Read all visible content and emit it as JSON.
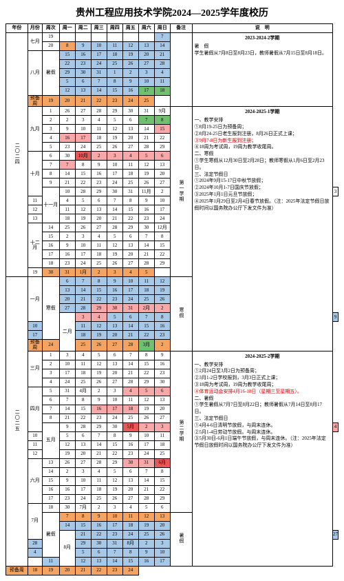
{
  "title": "贵州工程应用技术学院2024—2025学年度校历",
  "headers": {
    "year": "年份",
    "month": "月份",
    "week": "周次",
    "days": [
      "周一",
      "周二",
      "周三",
      "周四",
      "周五",
      "周六",
      "周日"
    ],
    "note": "备注",
    "explain": "说　明"
  },
  "colors": {
    "orange": "#f4a460",
    "blue": "#a8c8e8",
    "green": "#70c070",
    "pink": "#f8a8a8",
    "red": "#e85858",
    "gray": "#fff"
  },
  "years": {
    "y2024": "二〇二四",
    "y2025": "二〇二五"
  },
  "months": {
    "m7": "七月",
    "m8": "八月",
    "m9": "九月",
    "m10": "十月",
    "m11": "十一月",
    "m12": "十二月",
    "m1": "一月",
    "m2": "二月",
    "m3": "三月",
    "m4": "四月",
    "m5": "五月",
    "m6": "六月",
    "m7b": "7月",
    "m8b": "8月"
  },
  "notes": {
    "sem1": "第一学期",
    "sem2": "第二学期",
    "winter": "寒假",
    "summer": "暑假"
  },
  "labels": {
    "summer": "暑假",
    "prep": "预备周",
    "winter": "寒假"
  },
  "rows": [
    {
      "wk": "19",
      "d": [
        "",
        "",
        "",
        "",
        "",
        "",
        "7"
      ],
      "c": [
        "",
        "",
        "",
        "",
        "",
        "",
        "blue"
      ]
    },
    {
      "wk": "20",
      "d": [
        "8",
        "9",
        "10",
        "11",
        "12",
        "13",
        "14"
      ],
      "c": [
        "orange",
        "blue",
        "blue",
        "blue",
        "blue",
        "blue",
        "blue"
      ]
    },
    {
      "wk": "",
      "d": [
        "15",
        "16",
        "17",
        "18",
        "19",
        "20",
        "21"
      ],
      "c": [
        "blue",
        "blue",
        "blue",
        "blue",
        "blue",
        "blue",
        "blue"
      ]
    },
    {
      "wk": "",
      "d": [
        "22",
        "23",
        "24",
        "25",
        "26",
        "27",
        "28"
      ],
      "c": [
        "blue",
        "blue",
        "blue",
        "blue",
        "blue",
        "blue",
        "blue"
      ]
    },
    {
      "wk": "",
      "d": [
        "29",
        "30",
        "31",
        "1",
        "2",
        "3",
        "4"
      ],
      "c": [
        "blue",
        "blue",
        "blue",
        "blue",
        "blue",
        "blue",
        "blue"
      ]
    },
    {
      "wk": "",
      "d": [
        "5",
        "6",
        "7",
        "8",
        "9",
        "10",
        "11"
      ],
      "c": [
        "blue",
        "blue",
        "blue",
        "blue",
        "blue",
        "blue",
        "blue"
      ]
    },
    {
      "wk": "",
      "d": [
        "12",
        "13",
        "14",
        "15",
        "16",
        "17",
        "18"
      ],
      "c": [
        "blue",
        "blue",
        "blue",
        "blue",
        "blue",
        "green",
        "green"
      ]
    },
    {
      "wk": "预备周",
      "d": [
        "19",
        "20",
        "21",
        "22",
        "23",
        "24",
        "25"
      ],
      "c": [
        "orange",
        "orange",
        "orange",
        "orange",
        "orange",
        "orange",
        "orange"
      ]
    },
    {
      "wk": "1",
      "d": [
        "26",
        "27",
        "28",
        "29",
        "30",
        "31",
        "9月"
      ],
      "c": [
        "",
        "",
        "",
        "",
        "",
        "",
        "gray"
      ]
    },
    {
      "wk": "2",
      "d": [
        "2",
        "3",
        "4",
        "5",
        "6",
        "7",
        "8"
      ],
      "c": [
        "",
        "",
        "",
        "",
        "",
        "green",
        "green"
      ]
    },
    {
      "wk": "3",
      "d": [
        "9",
        "10",
        "11",
        "12",
        "13",
        "14",
        "15"
      ],
      "c": [
        "",
        "",
        "",
        "",
        "",
        "",
        "pink"
      ]
    },
    {
      "wk": "4",
      "d": [
        "16",
        "17",
        "18",
        "19",
        "20",
        "21",
        "22"
      ],
      "c": [
        "pink",
        "pink",
        "",
        "",
        "",
        "",
        ""
      ]
    },
    {
      "wk": "5",
      "d": [
        "23",
        "24",
        "25",
        "26",
        "27",
        "28",
        "29"
      ],
      "c": [
        "",
        "",
        "",
        "",
        "",
        "",
        ""
      ]
    },
    {
      "wk": "6",
      "d": [
        "30",
        "10月",
        "2",
        "3",
        "4",
        "5",
        "6"
      ],
      "c": [
        "",
        "red",
        "pink",
        "pink",
        "pink",
        "pink",
        "pink"
      ]
    },
    {
      "wk": "7",
      "d": [
        "7",
        "8",
        "9",
        "10",
        "11",
        "12",
        "13"
      ],
      "c": [
        "pink",
        "",
        "",
        "",
        "",
        "",
        ""
      ]
    },
    {
      "wk": "8",
      "d": [
        "14",
        "15",
        "16",
        "17",
        "18",
        "19",
        "20"
      ],
      "c": [
        "",
        "",
        "",
        "",
        "",
        "",
        ""
      ]
    },
    {
      "wk": "9",
      "d": [
        "21",
        "22",
        "23",
        "24",
        "25",
        "26",
        "27"
      ],
      "c": [
        "",
        "",
        "",
        "",
        "",
        "",
        ""
      ]
    },
    {
      "wk": "10",
      "d": [
        "28",
        "29",
        "30",
        "31",
        "11月",
        "2",
        "3"
      ],
      "c": [
        "",
        "",
        "",
        "",
        "gray",
        "",
        ""
      ]
    },
    {
      "wk": "11",
      "d": [
        "4",
        "5",
        "6",
        "7",
        "8",
        "9",
        "10"
      ],
      "c": [
        "",
        "",
        "",
        "",
        "",
        "",
        ""
      ]
    },
    {
      "wk": "12",
      "d": [
        "11",
        "12",
        "13",
        "14",
        "15",
        "16",
        "17"
      ],
      "c": [
        "",
        "",
        "",
        "",
        "",
        "",
        ""
      ]
    },
    {
      "wk": "13",
      "d": [
        "18",
        "19",
        "20",
        "21",
        "22",
        "23",
        "24"
      ],
      "c": [
        "",
        "",
        "",
        "",
        "",
        "",
        ""
      ]
    },
    {
      "wk": "14",
      "d": [
        "25",
        "26",
        "27",
        "28",
        "29",
        "30",
        "12月"
      ],
      "c": [
        "",
        "",
        "",
        "",
        "",
        "",
        "gray"
      ]
    },
    {
      "wk": "15",
      "d": [
        "2",
        "3",
        "4",
        "5",
        "6",
        "7",
        "8"
      ],
      "c": [
        "",
        "",
        "",
        "",
        "",
        "",
        ""
      ]
    },
    {
      "wk": "16",
      "d": [
        "9",
        "10",
        "11",
        "12",
        "13",
        "14",
        "15"
      ],
      "c": [
        "",
        "",
        "",
        "",
        "",
        "",
        ""
      ]
    },
    {
      "wk": "17",
      "d": [
        "16",
        "17",
        "18",
        "19",
        "20",
        "21",
        "22"
      ],
      "c": [
        "",
        "",
        "",
        "",
        "",
        "",
        ""
      ]
    },
    {
      "wk": "18",
      "d": [
        "23",
        "24",
        "25",
        "26",
        "27",
        "28",
        "29"
      ],
      "c": [
        "",
        "",
        "",
        "",
        "",
        "",
        ""
      ]
    },
    {
      "wk": "19",
      "d": [
        "30",
        "31",
        "1月",
        "2",
        "3",
        "4",
        "5"
      ],
      "c": [
        "orange",
        "orange",
        "orange",
        "orange",
        "orange",
        "orange",
        "orange"
      ]
    },
    {
      "wk": "",
      "d": [
        "6",
        "7",
        "8",
        "9",
        "10",
        "11",
        "12"
      ],
      "c": [
        "blue",
        "blue",
        "blue",
        "blue",
        "blue",
        "blue",
        "blue"
      ]
    },
    {
      "wk": "",
      "d": [
        "13",
        "14",
        "15",
        "16",
        "17",
        "18",
        "19"
      ],
      "c": [
        "blue",
        "blue",
        "blue",
        "blue",
        "blue",
        "blue",
        "blue"
      ]
    },
    {
      "wk": "",
      "d": [
        "20",
        "21",
        "22",
        "23",
        "24",
        "25",
        "26"
      ],
      "c": [
        "blue",
        "blue",
        "blue",
        "blue",
        "blue",
        "blue",
        "blue"
      ]
    },
    {
      "wk": "",
      "d": [
        "27",
        "28",
        "29",
        "30",
        "31",
        "2月",
        "2"
      ],
      "c": [
        "blue",
        "blue",
        "pink",
        "pink",
        "pink",
        "pink",
        "pink"
      ]
    },
    {
      "wk": "",
      "d": [
        "3",
        "4",
        "5",
        "6",
        "7",
        "8",
        "9"
      ],
      "c": [
        "pink",
        "pink",
        "blue",
        "blue",
        "blue",
        "blue",
        "blue"
      ]
    },
    {
      "wk": "",
      "d": [
        "10",
        "11",
        "12",
        "13",
        "14",
        "15",
        "16"
      ],
      "c": [
        "blue",
        "blue",
        "blue",
        "blue",
        "blue",
        "blue",
        "blue"
      ]
    },
    {
      "wk": "",
      "d": [
        "17",
        "18",
        "19",
        "20",
        "21",
        "22",
        "23"
      ],
      "c": [
        "blue",
        "blue",
        "blue",
        "blue",
        "blue",
        "blue",
        "blue"
      ]
    },
    {
      "wk": "预备周",
      "d": [
        "24",
        "25",
        "26",
        "27",
        "28",
        "3月",
        "2"
      ],
      "c": [
        "orange",
        "orange",
        "orange",
        "orange",
        "orange",
        "green",
        "orange"
      ]
    },
    {
      "wk": "1",
      "d": [
        "3",
        "4",
        "5",
        "6",
        "7",
        "8",
        "9"
      ],
      "c": [
        "",
        "",
        "",
        "",
        "",
        "",
        ""
      ]
    },
    {
      "wk": "2",
      "d": [
        "10",
        "11",
        "12",
        "13",
        "14",
        "15",
        "16"
      ],
      "c": [
        "",
        "",
        "",
        "",
        "",
        "",
        ""
      ]
    },
    {
      "wk": "3",
      "d": [
        "17",
        "18",
        "19",
        "20",
        "21",
        "22",
        "23"
      ],
      "c": [
        "",
        "",
        "",
        "",
        "",
        "",
        ""
      ]
    },
    {
      "wk": "4",
      "d": [
        "24",
        "25",
        "26",
        "27",
        "28",
        "29",
        "30"
      ],
      "c": [
        "",
        "",
        "",
        "",
        "",
        "",
        ""
      ]
    },
    {
      "wk": "5",
      "d": [
        "31",
        "4月",
        "2",
        "3",
        "4",
        "5",
        "6"
      ],
      "c": [
        "",
        "gray",
        "",
        "",
        "pink",
        "pink",
        "pink"
      ]
    },
    {
      "wk": "6",
      "d": [
        "7",
        "8",
        "9",
        "10",
        "11",
        "12",
        "13"
      ],
      "c": [
        "",
        "",
        "",
        "",
        "",
        "",
        ""
      ]
    },
    {
      "wk": "7",
      "d": [
        "14",
        "15",
        "16",
        "17",
        "18",
        "19",
        "20"
      ],
      "c": [
        "",
        "",
        "pink",
        "pink",
        "pink",
        "",
        ""
      ]
    },
    {
      "wk": "8",
      "d": [
        "21",
        "22",
        "23",
        "24",
        "25",
        "26",
        "27"
      ],
      "c": [
        "",
        "",
        "",
        "",
        "",
        "",
        ""
      ]
    },
    {
      "wk": "9",
      "d": [
        "28",
        "29",
        "30",
        "5月",
        "2",
        "3",
        "4"
      ],
      "c": [
        "",
        "",
        "",
        "red",
        "pink",
        "pink",
        "pink"
      ]
    },
    {
      "wk": "10",
      "d": [
        "5",
        "6",
        "7",
        "8",
        "9",
        "10",
        "11"
      ],
      "c": [
        "",
        "",
        "",
        "",
        "",
        "",
        ""
      ]
    },
    {
      "wk": "11",
      "d": [
        "12",
        "13",
        "14",
        "15",
        "16",
        "17",
        "18"
      ],
      "c": [
        "",
        "",
        "",
        "",
        "",
        "",
        ""
      ]
    },
    {
      "wk": "12",
      "d": [
        "19",
        "20",
        "21",
        "22",
        "23",
        "24",
        "25"
      ],
      "c": [
        "",
        "",
        "",
        "",
        "",
        "",
        ""
      ]
    },
    {
      "wk": "13",
      "d": [
        "26",
        "27",
        "28",
        "29",
        "30",
        "31",
        "6月"
      ],
      "c": [
        "",
        "",
        "",
        "",
        "pink",
        "pink",
        "red"
      ]
    },
    {
      "wk": "14",
      "d": [
        "2",
        "3",
        "4",
        "5",
        "6",
        "7",
        "8"
      ],
      "c": [
        "",
        "",
        "",
        "",
        "",
        "",
        ""
      ]
    },
    {
      "wk": "15",
      "d": [
        "9",
        "10",
        "11",
        "12",
        "13",
        "14",
        "15"
      ],
      "c": [
        "",
        "",
        "",
        "",
        "",
        "",
        ""
      ]
    },
    {
      "wk": "16",
      "d": [
        "16",
        "17",
        "18",
        "19",
        "20",
        "21",
        "22"
      ],
      "c": [
        "",
        "",
        "",
        "",
        "",
        "",
        ""
      ]
    },
    {
      "wk": "17",
      "d": [
        "23",
        "24",
        "25",
        "26",
        "27",
        "28",
        "29"
      ],
      "c": [
        "",
        "",
        "",
        "",
        "",
        "",
        ""
      ]
    },
    {
      "wk": "18",
      "d": [
        "30",
        "7月",
        "2",
        "3",
        "4",
        "5",
        "6"
      ],
      "c": [
        "",
        "gray",
        "",
        "",
        "",
        "",
        ""
      ]
    },
    {
      "wk": "19",
      "d": [
        "7",
        "8",
        "9",
        "10",
        "11",
        "12",
        "13"
      ],
      "c": [
        "orange",
        "orange",
        "orange",
        "orange",
        "orange",
        "orange",
        "orange"
      ]
    },
    {
      "wk": "",
      "d": [
        "14",
        "15",
        "16",
        "17",
        "18",
        "19",
        "20"
      ],
      "c": [
        "blue",
        "blue",
        "blue",
        "blue",
        "blue",
        "blue",
        "blue"
      ]
    },
    {
      "wk": "",
      "d": [
        "21",
        "22",
        "23",
        "24",
        "25",
        "26",
        "27"
      ],
      "c": [
        "blue",
        "blue",
        "blue",
        "blue",
        "blue",
        "blue",
        "blue"
      ]
    },
    {
      "wk": "",
      "d": [
        "28",
        "29",
        "30",
        "31",
        "8月",
        "2",
        "3"
      ],
      "c": [
        "blue",
        "blue",
        "blue",
        "blue",
        "blue",
        "blue",
        "blue"
      ]
    },
    {
      "wk": "",
      "d": [
        "4",
        "5",
        "6",
        "7",
        "8",
        "9",
        "10"
      ],
      "c": [
        "blue",
        "blue",
        "blue",
        "blue",
        "blue",
        "blue",
        "blue"
      ]
    },
    {
      "wk": "",
      "d": [
        "11",
        "12",
        "13",
        "14",
        "15",
        "16",
        "17"
      ],
      "c": [
        "blue",
        "blue",
        "blue",
        "blue",
        "blue",
        "blue",
        "blue"
      ]
    },
    {
      "wk": "预备周",
      "d": [
        "18",
        "19",
        "20",
        "21",
        "22",
        "23",
        "24"
      ],
      "c": [
        "orange",
        "orange",
        "orange",
        "orange",
        "orange",
        "orange",
        "orange"
      ]
    }
  ],
  "exp1": {
    "hdr": "2023-2024-2学期",
    "body": "暑　假\n学生暑假从7月8日至8月23日，教师暑假从7月15日至8月18日。"
  },
  "exp2": {
    "hdr": "2024-2025-1学期",
    "body": "一、教学安排\n①8月19-25日为预备周；\n②8月24-25日老生报到注册，8月26日正式上课；",
    "red": "③9月7-8日为新生报到注册；",
    "body2": "④18周为考试周，19周为教学收尾周。\n二、寒假\n①学生寒假从12月30日至2月28日；教师寒假从1月6日至2月23日。\n三、法定节假日\n①2024年9月15-17日中秋节放假；\n②2024年10月1-7日国庆节放假；\n③2025年1月1日元旦节放假；\n④2025年1月29日至2月4日春节放假。（注：2025年法定节假日放假时间以国务院办公厅下发文件为准）"
  },
  "exp3": {
    "hdr": "2024-2025-2学期",
    "body": "一、教学安排\n①2月24日至3月2日为预备周；\n②3月1-2日学校报到，3月3日正式上课；\n③18周为考试周，19周为教学收尾周；",
    "red": "④体育运动会安排4月16-18日（星期三至星期五）。",
    "body2": "二、暑假\n①学生暑假从7月7日至8月22日；教师暑假从7月14日至8月17日。\n三、法定节假日\n①4月4-6日清明节放假，与周末连休。\n②5月1-4日劳动节放假。与周末连休。\n③5月30日-6月1日端午节放假，与周末连休。（注：2025年法定节假日放假时间以国务院办公厅下发文件为准）"
  }
}
